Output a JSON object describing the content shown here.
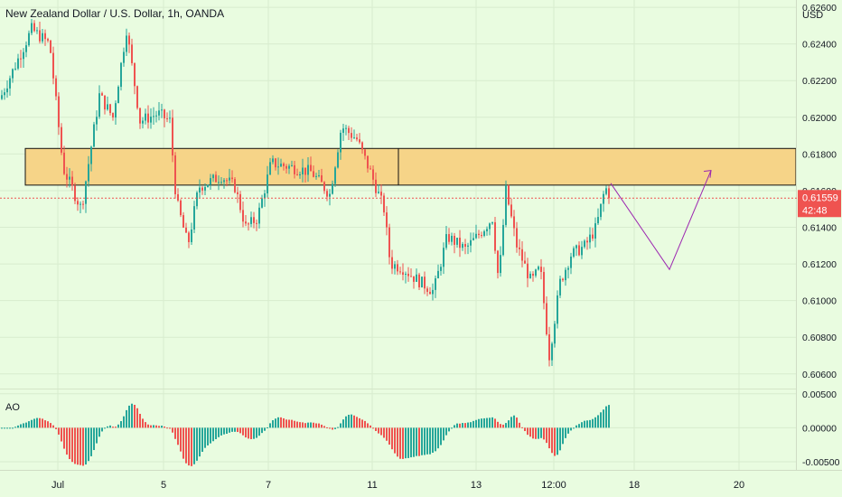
{
  "header": {
    "title": "New Zealand Dollar / U.S. Dollar, 1h, OANDA"
  },
  "price_axis": {
    "currency": "USD",
    "ticks": [
      "0.62600",
      "0.62400",
      "0.62200",
      "0.62000",
      "0.61800",
      "0.61600",
      "0.61400",
      "0.61200",
      "0.61000",
      "0.60800",
      "0.60600"
    ],
    "ymin": 0.6052,
    "ymax": 0.6264
  },
  "last_price": {
    "value": "0.61559",
    "countdown": "42:48",
    "color": "#ef5350"
  },
  "ao_axis": {
    "label": "AO",
    "ticks": [
      "0.00500",
      "0.00000",
      "-0.00500"
    ],
    "ymin": -0.0062,
    "ymax": 0.0055
  },
  "time_axis": {
    "labels": [
      "Jul",
      "5",
      "7",
      "11",
      "13",
      "12:00",
      "18",
      "20"
    ]
  },
  "colors": {
    "up": "#26a69a",
    "down": "#ef5350",
    "zone_fill": "#f6d488",
    "zone_stroke": "#111111",
    "projection": "#9c27b0",
    "background": "#e9fce0"
  },
  "chart_data": [
    {
      "type": "candlestick",
      "title": "New Zealand Dollar / U.S. Dollar, 1h, OANDA",
      "ylabel": "USD",
      "ylim": [
        0.6052,
        0.6264
      ],
      "grid": true,
      "anchor_path": [
        {
          "x": 0,
          "y": 0.621
        },
        {
          "x": 35,
          "y": 0.6248
        },
        {
          "x": 55,
          "y": 0.624
        },
        {
          "x": 70,
          "y": 0.6172
        },
        {
          "x": 90,
          "y": 0.615
        },
        {
          "x": 110,
          "y": 0.6212
        },
        {
          "x": 125,
          "y": 0.62
        },
        {
          "x": 140,
          "y": 0.6248
        },
        {
          "x": 155,
          "y": 0.6198
        },
        {
          "x": 175,
          "y": 0.6202
        },
        {
          "x": 188,
          "y": 0.6198
        },
        {
          "x": 195,
          "y": 0.6155
        },
        {
          "x": 208,
          "y": 0.613
        },
        {
          "x": 220,
          "y": 0.6162
        },
        {
          "x": 245,
          "y": 0.6168
        },
        {
          "x": 260,
          "y": 0.6162
        },
        {
          "x": 272,
          "y": 0.614
        },
        {
          "x": 285,
          "y": 0.6145
        },
        {
          "x": 300,
          "y": 0.6175
        },
        {
          "x": 330,
          "y": 0.6172
        },
        {
          "x": 345,
          "y": 0.617
        },
        {
          "x": 365,
          "y": 0.6158
        },
        {
          "x": 378,
          "y": 0.6195
        },
        {
          "x": 395,
          "y": 0.6188
        },
        {
          "x": 410,
          "y": 0.617
        },
        {
          "x": 425,
          "y": 0.615
        },
        {
          "x": 432,
          "y": 0.612
        },
        {
          "x": 445,
          "y": 0.6118
        },
        {
          "x": 460,
          "y": 0.6112
        },
        {
          "x": 480,
          "y": 0.6105
        },
        {
          "x": 495,
          "y": 0.6135
        },
        {
          "x": 515,
          "y": 0.6128
        },
        {
          "x": 530,
          "y": 0.6136
        },
        {
          "x": 545,
          "y": 0.6145
        },
        {
          "x": 552,
          "y": 0.611
        },
        {
          "x": 560,
          "y": 0.616
        },
        {
          "x": 572,
          "y": 0.613
        },
        {
          "x": 588,
          "y": 0.611
        },
        {
          "x": 598,
          "y": 0.6118
        },
        {
          "x": 608,
          "y": 0.607
        },
        {
          "x": 620,
          "y": 0.611
        },
        {
          "x": 632,
          "y": 0.6125
        },
        {
          "x": 648,
          "y": 0.613
        },
        {
          "x": 660,
          "y": 0.614
        },
        {
          "x": 670,
          "y": 0.6162
        },
        {
          "x": 675,
          "y": 0.61559
        }
      ],
      "resistance_zone": {
        "y_top": 0.6183,
        "y_bottom": 0.6163
      },
      "projection": [
        {
          "x": 0,
          "y": 0.6164
        },
        {
          "x": 1,
          "y": 0.6117
        },
        {
          "x": 2,
          "y": 0.6171
        }
      ],
      "last_price": 0.61559
    },
    {
      "type": "bar",
      "title": "AO",
      "ylim": [
        -0.0062,
        0.0055
      ],
      "series": [
        {
          "name": "AO",
          "values": []
        }
      ]
    }
  ]
}
